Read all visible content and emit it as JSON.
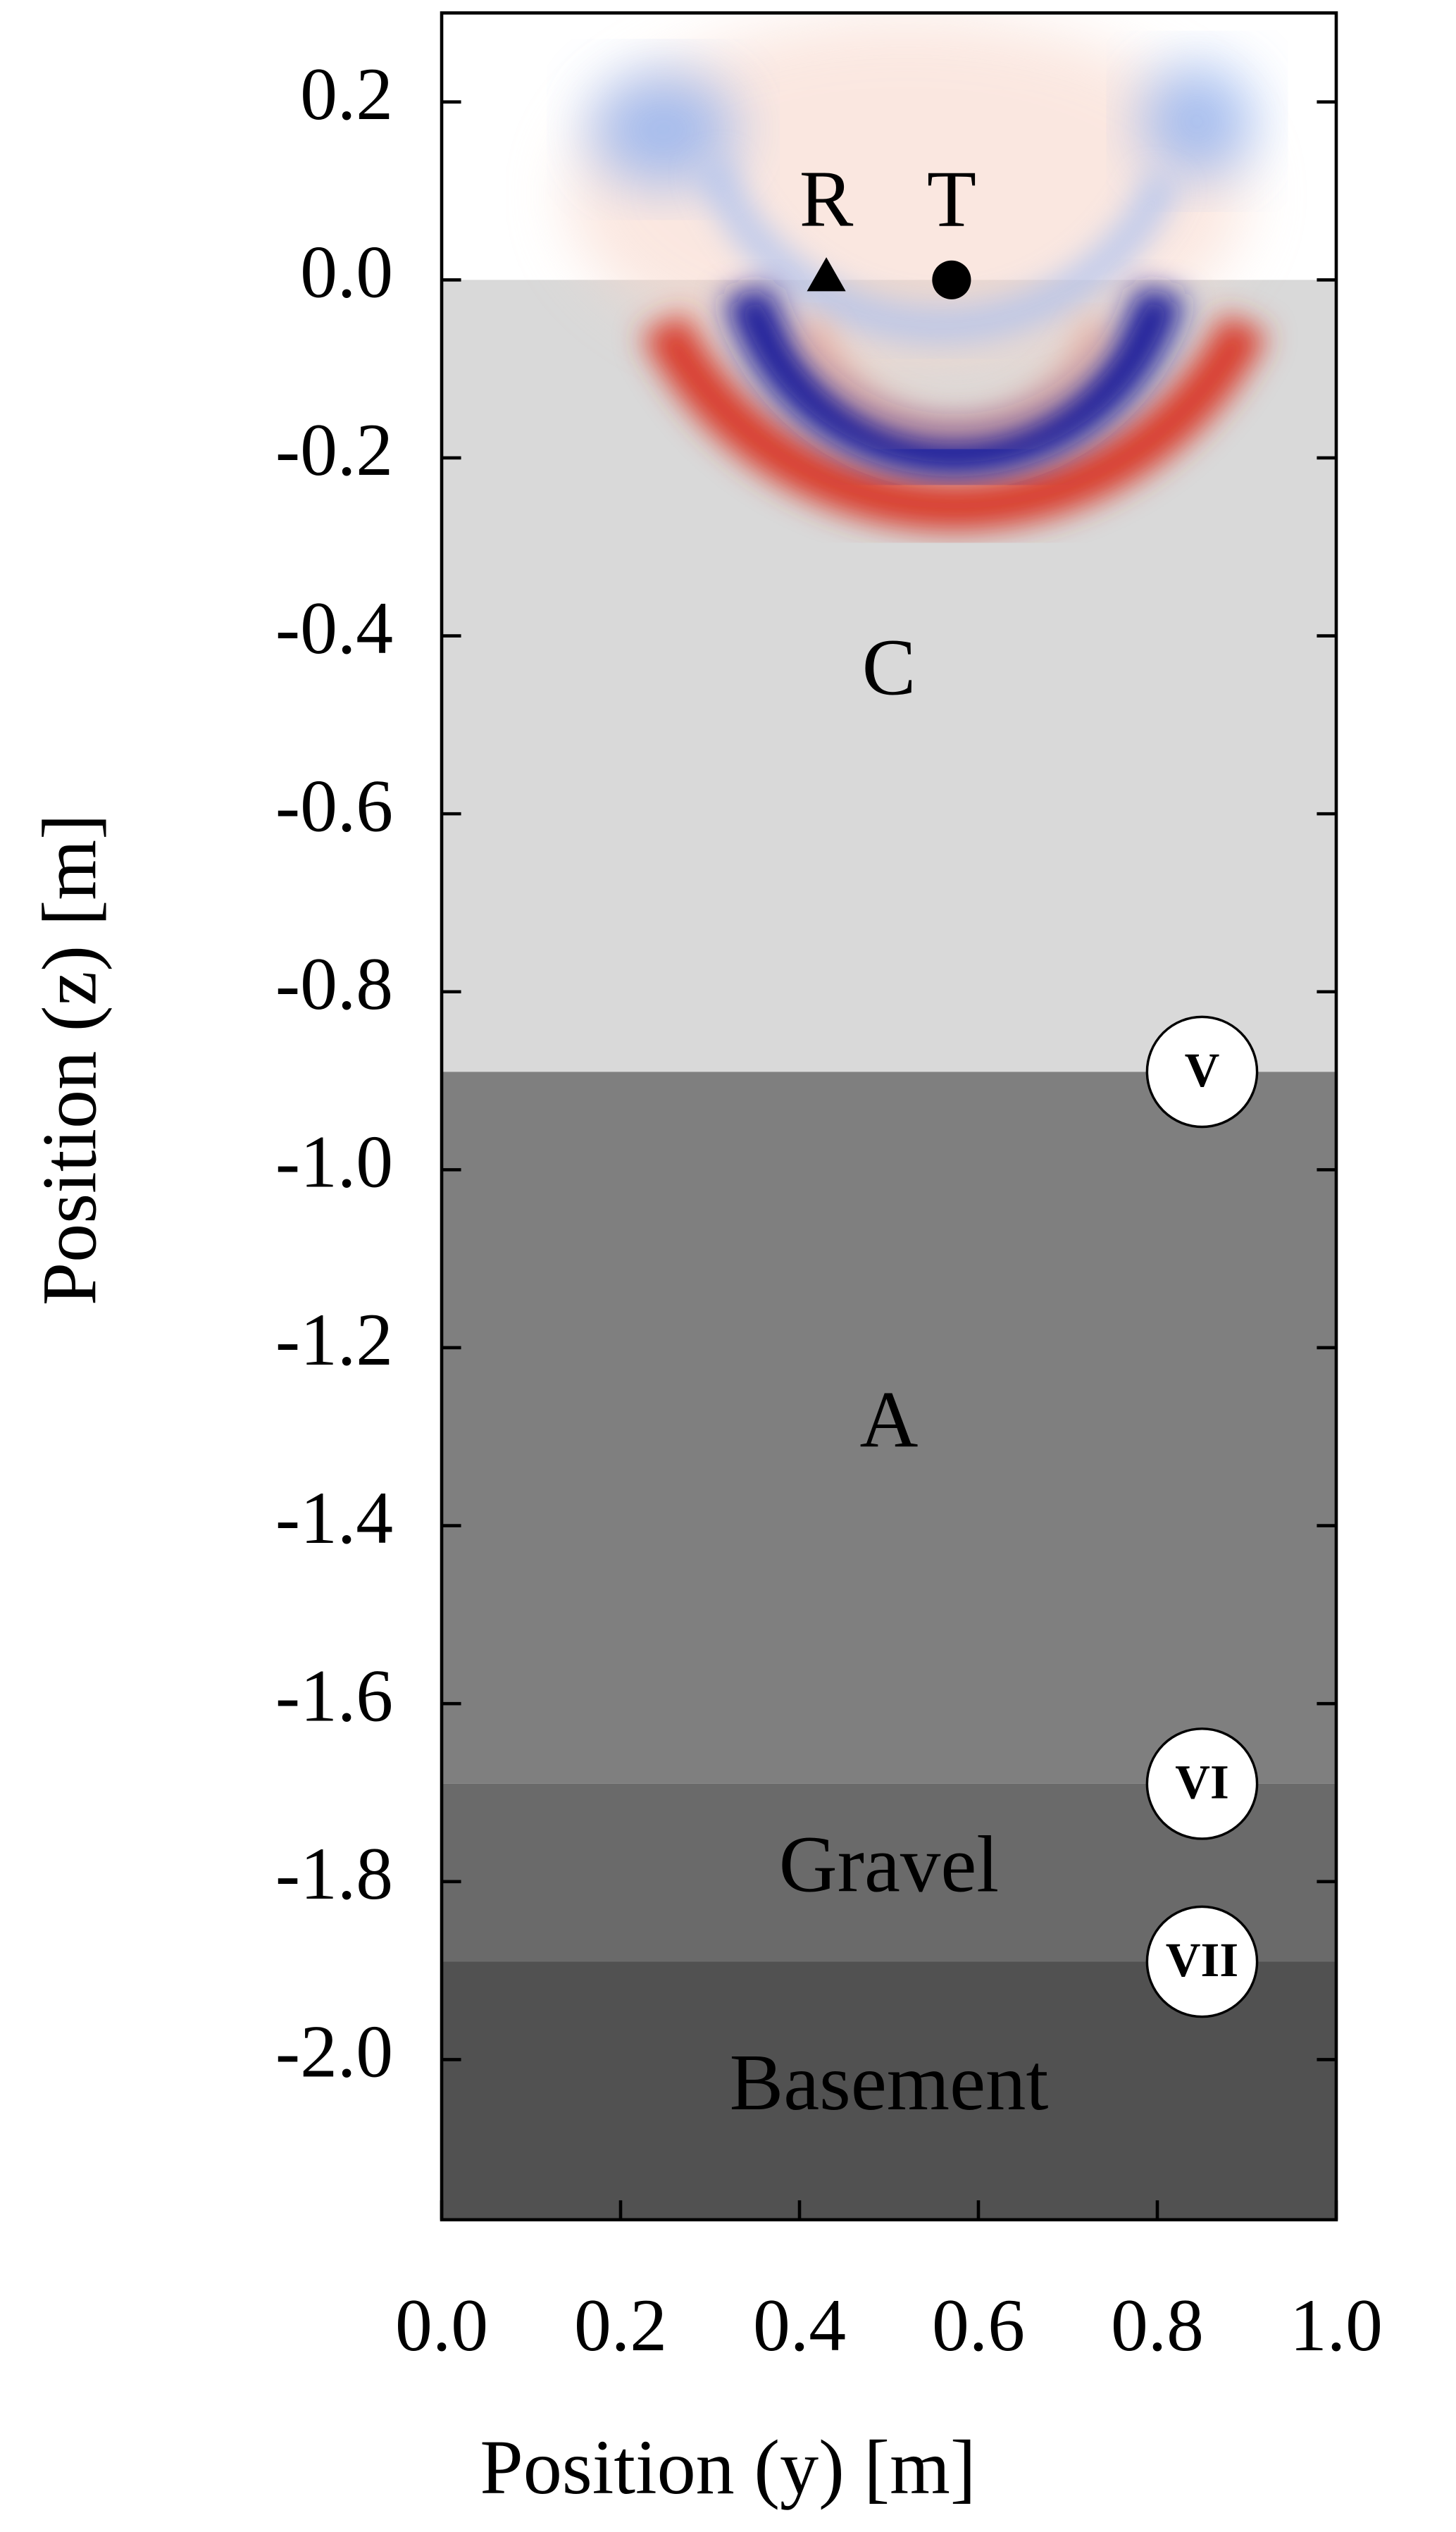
{
  "chart_data": {
    "type": "layered-section",
    "xlabel": "Position (y) [m]",
    "ylabel": "Position (z) [m]",
    "xlim": [
      0,
      1
    ],
    "ylim": [
      -2.18,
      0.3
    ],
    "xticks": [
      {
        "value": 0,
        "label": "0.0"
      },
      0.2,
      0.4,
      0.6,
      0.8,
      {
        "value": 1,
        "label": "1.0"
      }
    ],
    "yticks": [
      0.2,
      {
        "value": 0,
        "label": "0.0"
      },
      -0.2,
      -0.4,
      -0.6,
      -0.8,
      {
        "value": -1,
        "label": "-1.0"
      },
      -1.2,
      -1.4,
      -1.6,
      -1.8,
      {
        "value": -2,
        "label": "-2.0"
      }
    ],
    "layers": [
      {
        "name": "C",
        "top": 0,
        "bottom": -0.89,
        "color": "#d9d9d9"
      },
      {
        "name": "A",
        "top": -0.89,
        "bottom": -1.69,
        "color": "#7f7f7f"
      },
      {
        "name": "Gravel",
        "top": -1.69,
        "bottom": -1.89,
        "color": "#6a6a6a"
      },
      {
        "name": "Basement",
        "top": -1.89,
        "bottom": -2.18,
        "color": "#515151"
      }
    ],
    "boundary_labels": [
      {
        "label": "V",
        "y": 0.85,
        "z": -0.89
      },
      {
        "label": "VI",
        "y": 0.85,
        "z": -1.69
      },
      {
        "label": "VII",
        "y": 0.85,
        "z": -1.89
      }
    ],
    "receiver": {
      "label": "R",
      "y": 0.43,
      "z": 0
    },
    "transmitter": {
      "label": "T",
      "y": 0.57,
      "z": 0
    }
  }
}
